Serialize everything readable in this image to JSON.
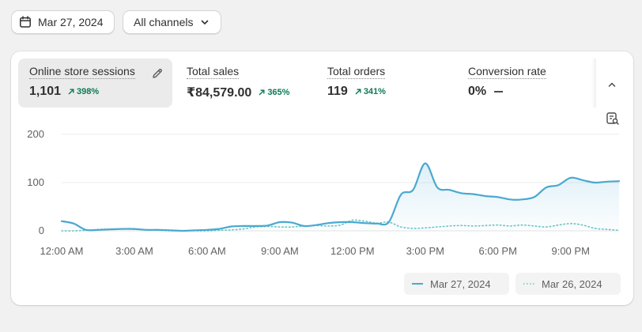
{
  "filters": {
    "date_label": "Mar 27, 2024",
    "channel_label": "All channels"
  },
  "metrics": [
    {
      "label": "Online store sessions",
      "value": "1,101",
      "change": "398%",
      "trend": "up"
    },
    {
      "label": "Total sales",
      "value": "₹84,579.00",
      "change": "365%",
      "trend": "up"
    },
    {
      "label": "Total orders",
      "value": "119",
      "change": "341%",
      "trend": "up"
    },
    {
      "label": "Conversion rate",
      "value": "0%",
      "change": "",
      "trend": "flat"
    }
  ],
  "chart_data": {
    "type": "line",
    "y_ticks": [
      "200",
      "100",
      "0"
    ],
    "ylim": [
      0,
      200
    ],
    "x_ticks": [
      "12:00 AM",
      "3:00 AM",
      "6:00 AM",
      "9:00 AM",
      "12:00 PM",
      "3:00 PM",
      "6:00 PM",
      "9:00 PM"
    ],
    "x": [
      0,
      0.5,
      1,
      1.5,
      2,
      2.5,
      3,
      3.5,
      4,
      4.5,
      5,
      5.5,
      6,
      6.5,
      7,
      7.5,
      8,
      8.5,
      9,
      9.5,
      10,
      10.5,
      11,
      11.5,
      12,
      12.5,
      13,
      13.5,
      14,
      14.5,
      15,
      15.5,
      16,
      16.5,
      17,
      17.5,
      18,
      18.5,
      19,
      19.5,
      20,
      20.5,
      21,
      21.5,
      22,
      22.5,
      23
    ],
    "series": [
      {
        "name": "Mar 27, 2024",
        "color": "#4aa9d0",
        "style": "solid",
        "values": [
          20,
          15,
          2,
          2,
          3,
          4,
          4,
          2,
          2,
          1,
          0,
          1,
          2,
          4,
          9,
          10,
          10,
          11,
          18,
          17,
          10,
          12,
          16,
          18,
          18,
          16,
          15,
          18,
          75,
          85,
          140,
          90,
          85,
          78,
          76,
          72,
          70,
          65,
          65,
          70,
          90,
          95,
          110,
          105,
          100,
          102,
          103
        ]
      },
      {
        "name": "Mar 26, 2024",
        "color": "#6bc4c9",
        "style": "dotted",
        "values": [
          0,
          0,
          1,
          3,
          4,
          4,
          3,
          2,
          1,
          0,
          0,
          0,
          0,
          1,
          2,
          4,
          8,
          9,
          8,
          8,
          10,
          11,
          10,
          12,
          22,
          20,
          16,
          18,
          8,
          5,
          6,
          8,
          10,
          11,
          10,
          11,
          12,
          10,
          12,
          10,
          8,
          12,
          15,
          12,
          5,
          3,
          1
        ]
      }
    ]
  }
}
